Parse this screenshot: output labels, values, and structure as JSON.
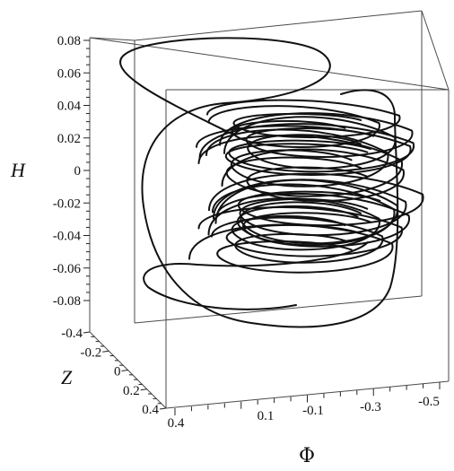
{
  "chart_data": {
    "type": "line",
    "projection": "3d",
    "title": "",
    "xlabel": "Φ",
    "ylabel": "Z",
    "zlabel": "H",
    "x_ticks": [
      "0.4",
      "0.1",
      "-0.1",
      "-0.3",
      "-0.5"
    ],
    "y_ticks": [
      "-0.4",
      "-0.2",
      "0",
      "0.2",
      "0.4"
    ],
    "z_ticks": [
      "0.08",
      "0.06",
      "0.04",
      "0.02",
      "0",
      "-0.02",
      "-0.04",
      "-0.06",
      "-0.08"
    ],
    "xlim": [
      0.4,
      -0.5
    ],
    "ylim": [
      -0.4,
      0.4
    ],
    "zlim": [
      -0.09,
      0.09
    ],
    "grid": false,
    "legend": false,
    "line_color": "#111111",
    "box_color": "#4a4a4a",
    "series": [
      {
        "description_of_shape": "chaotic attractor trajectory",
        "loops": [
          {
            "phi": 0.05,
            "h_center": -0.035,
            "h_amp": 0.01
          },
          {
            "phi": 0.02,
            "h_center": -0.03,
            "h_amp": 0.012
          },
          {
            "phi": 0.0,
            "h_center": -0.025,
            "h_amp": 0.011
          },
          {
            "phi": 0.03,
            "h_center": -0.04,
            "h_amp": 0.009
          },
          {
            "phi": -0.02,
            "h_center": -0.02,
            "h_amp": 0.01
          },
          {
            "phi": 0.04,
            "h_center": -0.045,
            "h_amp": 0.008
          },
          {
            "phi": 0.01,
            "h_center": -0.028,
            "h_amp": 0.013
          },
          {
            "phi": -0.01,
            "h_center": -0.033,
            "h_amp": 0.01
          },
          {
            "phi": 0.06,
            "h_center": -0.05,
            "h_amp": 0.009
          },
          {
            "phi": 0.02,
            "h_center": 0.01,
            "h_amp": 0.009
          },
          {
            "phi": 0.0,
            "h_center": 0.015,
            "h_amp": 0.01
          },
          {
            "phi": 0.04,
            "h_center": 0.005,
            "h_amp": 0.011
          },
          {
            "phi": -0.02,
            "h_center": 0.02,
            "h_amp": 0.008
          },
          {
            "phi": 0.03,
            "h_center": 0.0,
            "h_amp": 0.012
          },
          {
            "phi": 0.01,
            "h_center": 0.012,
            "h_amp": 0.009
          },
          {
            "phi": 0.05,
            "h_center": 0.025,
            "h_amp": 0.007
          },
          {
            "phi": -0.01,
            "h_center": -0.005,
            "h_amp": 0.01
          },
          {
            "phi": 0.02,
            "h_center": 0.03,
            "h_amp": 0.006
          }
        ]
      }
    ]
  }
}
